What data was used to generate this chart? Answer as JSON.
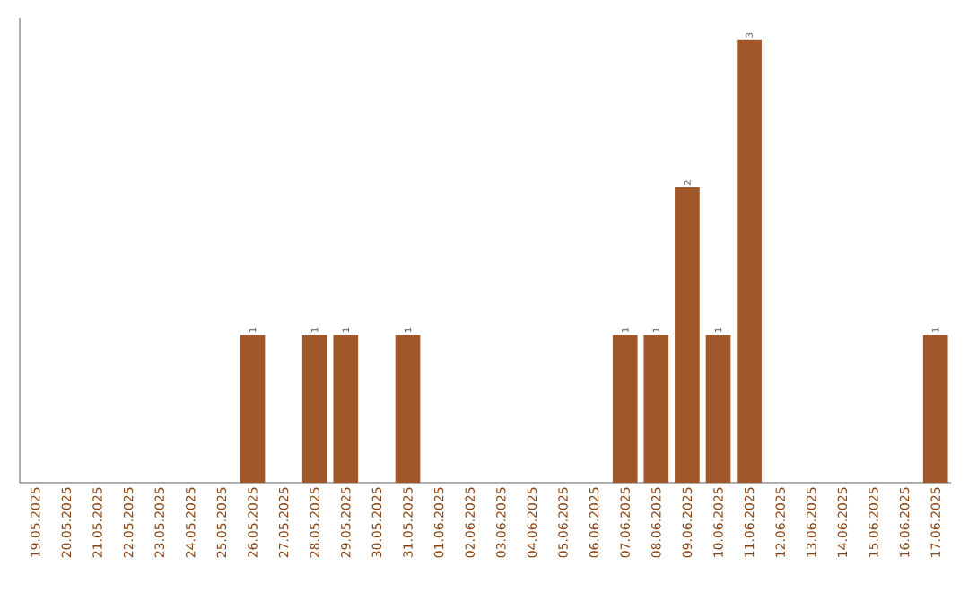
{
  "chart_data": {
    "type": "bar",
    "categories": [
      "19.05.2025",
      "20.05.2025",
      "21.05.2025",
      "22.05.2025",
      "23.05.2025",
      "24.05.2025",
      "25.05.2025",
      "26.05.2025",
      "27.05.2025",
      "28.05.2025",
      "29.05.2025",
      "30.05.2025",
      "31.05.2025",
      "01.06.2025",
      "02.06.2025",
      "03.06.2025",
      "04.06.2025",
      "05.06.2025",
      "06.06.2025",
      "07.06.2025",
      "08.06.2025",
      "09.06.2025",
      "10.06.2025",
      "11.06.2025",
      "12.06.2025",
      "13.06.2025",
      "14.06.2025",
      "15.06.2025",
      "16.06.2025",
      "17.06.2025"
    ],
    "values": [
      0,
      0,
      0,
      0,
      0,
      0,
      0,
      1,
      0,
      1,
      1,
      0,
      1,
      0,
      0,
      0,
      0,
      0,
      0,
      1,
      1,
      2,
      1,
      3,
      0,
      0,
      0,
      0,
      0,
      1
    ],
    "value_labels": [
      null,
      null,
      null,
      null,
      null,
      null,
      null,
      "1",
      null,
      "1",
      "1",
      null,
      "1",
      null,
      null,
      null,
      null,
      null,
      null,
      "1",
      "1",
      "2",
      "1",
      "3",
      null,
      null,
      null,
      null,
      null,
      "1"
    ],
    "color": "#a0582a",
    "grid": false
  }
}
